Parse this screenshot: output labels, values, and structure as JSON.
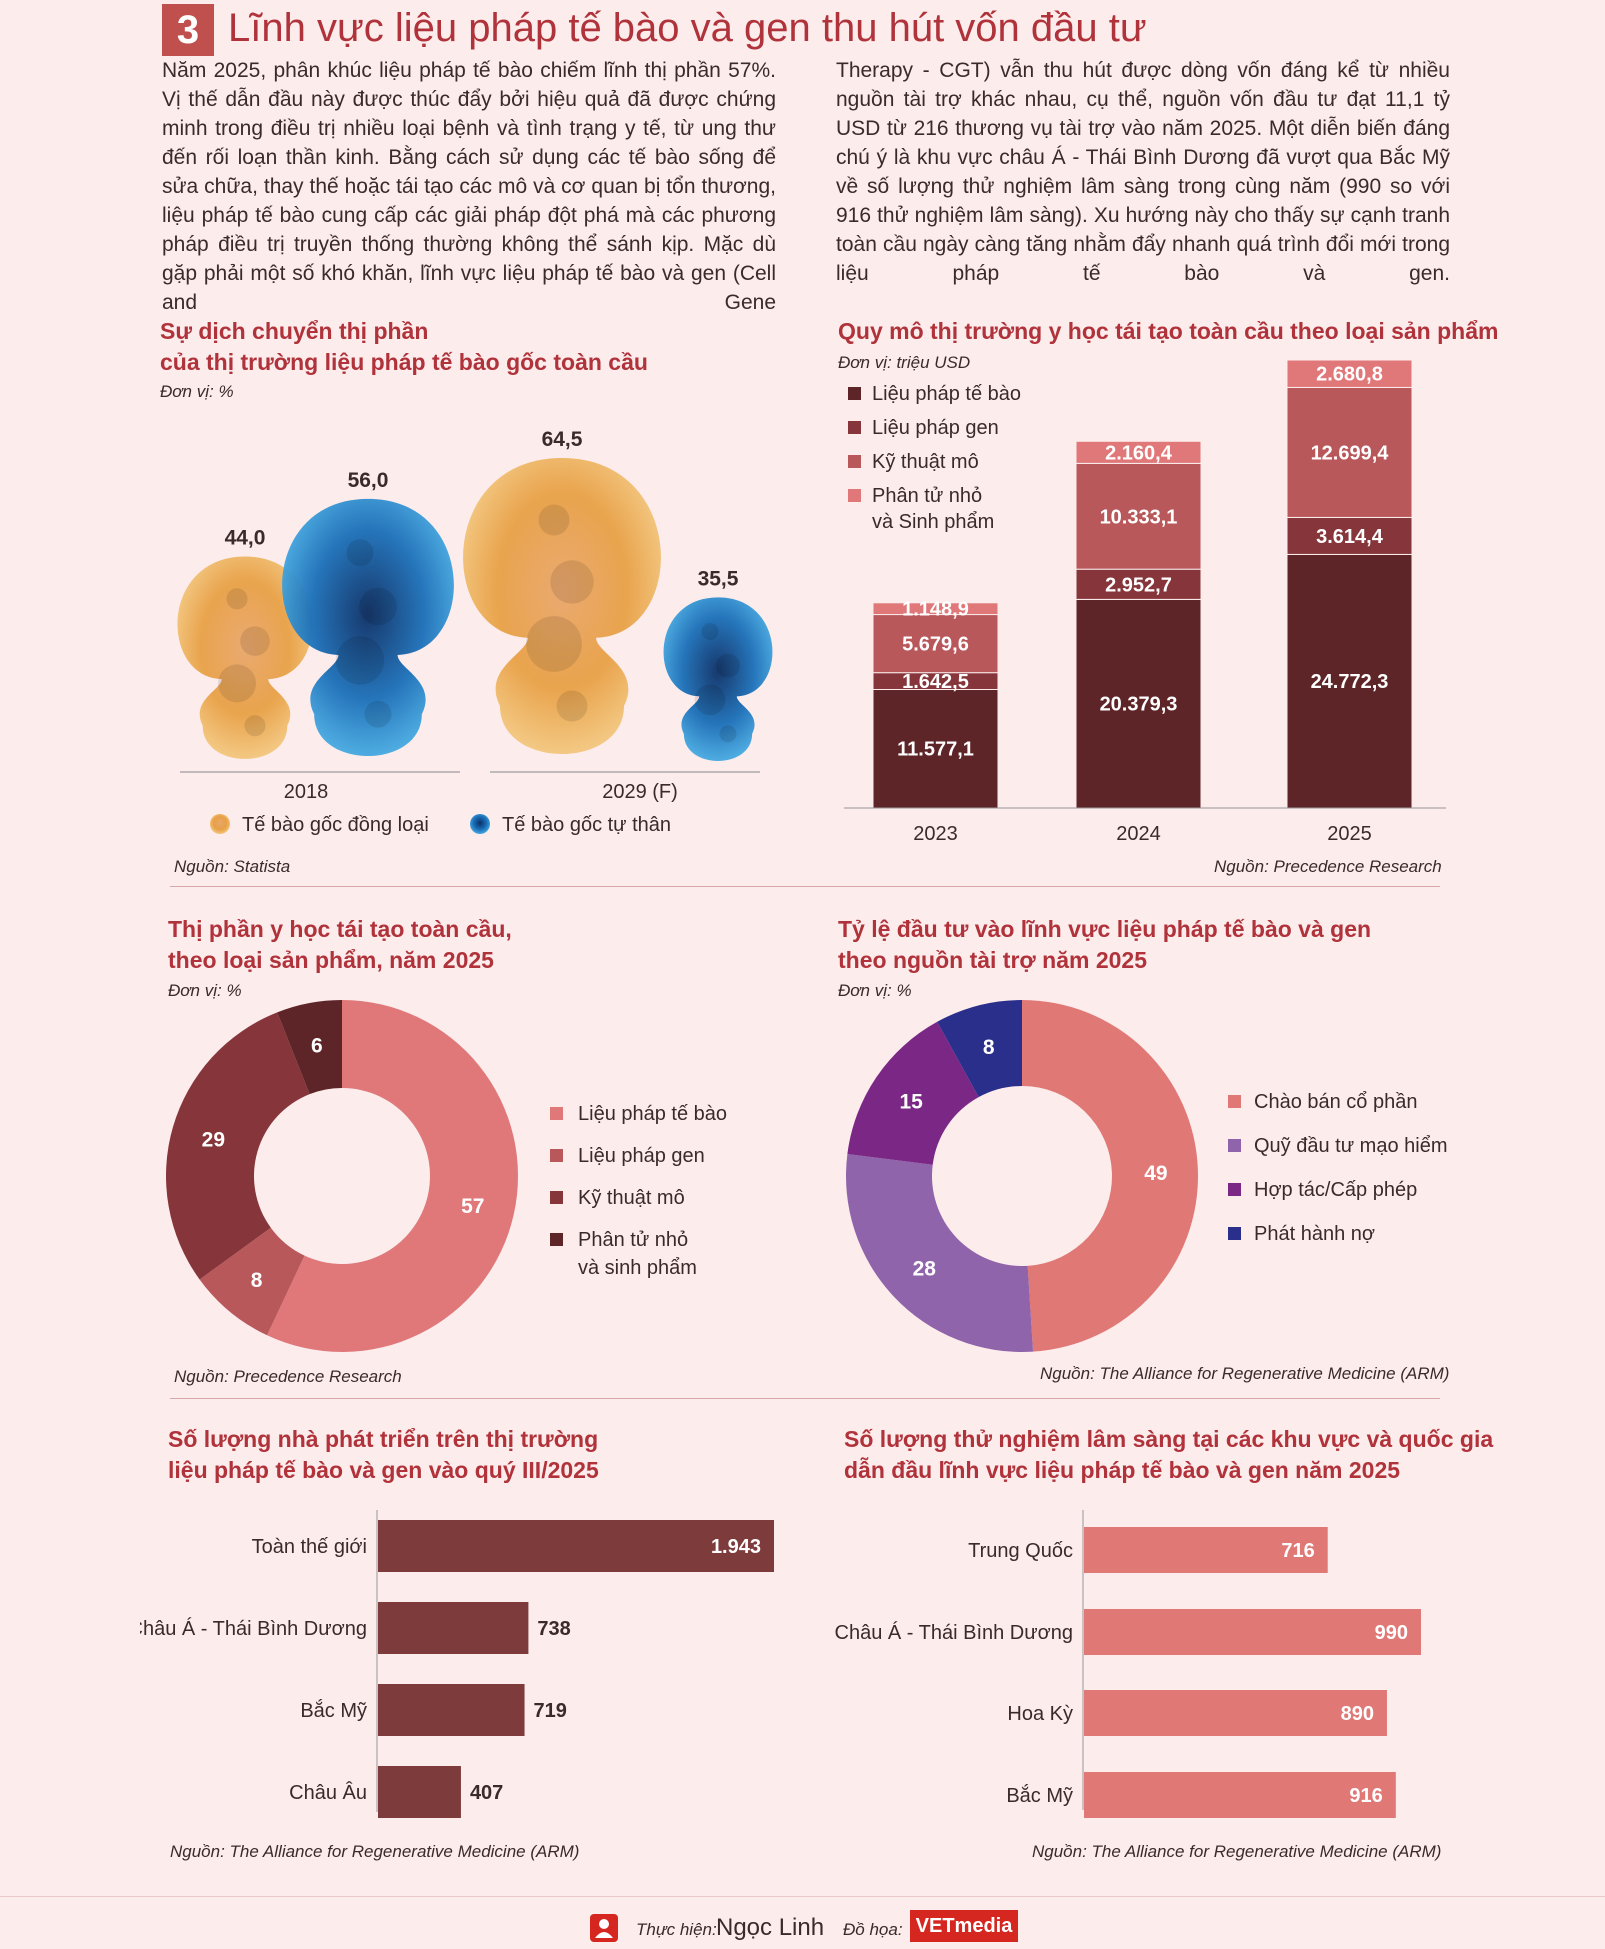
{
  "header": {
    "number": "3",
    "title": "Lĩnh vực  liệu pháp tế bào và gen thu hút vốn đầu tư"
  },
  "intro": {
    "col1": "Năm 2025, phân khúc liệu pháp tế bào chiếm lĩnh thị phần 57%. Vị thế dẫn đầu này được thúc đẩy bởi hiệu quả đã được chứng minh trong điều trị nhiều loại bệnh và tình trạng y tế, từ ung thư đến rối loạn thần kinh. Bằng cách sử dụng các tế bào sống để sửa chữa, thay thế hoặc tái tạo các mô và cơ quan bị tổn thương, liệu pháp tế bào cung cấp các giải pháp đột phá mà các phương pháp điều trị truyền thống thường không thể sánh kịp. Mặc dù gặp phải một số khó khăn, lĩnh vực liệu pháp tế bào và gen (Cell and Gene",
    "col2": "Therapy - CGT) vẫn thu hút được dòng vốn đáng kể từ nhiều nguồn tài trợ khác nhau, cụ thể, nguồn vốn đầu tư đạt 11,1 tỷ USD từ 216 thương vụ tài trợ vào năm 2025. Một diễn biến đáng chú ý là khu vực châu Á - Thái Bình Dương đã vượt qua Bắc Mỹ về số lượng thử nghiệm lâm sàng trong cùng năm (990 so với 916 thử nghiệm lâm sàng). Xu hướng này cho thấy sự cạnh tranh toàn cầu ngày càng tăng nhằm đẩy nhanh quá trình đổi mới trong liệu pháp tế bào và gen."
  },
  "colors": {
    "title": "#b0323a",
    "orange": "#e8a045",
    "blue": "#1a6fb8",
    "dark": "#5e2528",
    "maroon": "#86363a",
    "mid": "#b9585b",
    "light": "#e0787a",
    "salmon": "#e07876",
    "lavender": "#8f64ab",
    "purple": "#7b2785",
    "navy": "#2b2f8c",
    "bar_brown": "#7d3b3c"
  },
  "chart_data": [
    {
      "id": "stemcell",
      "type": "bar",
      "title": "Sự dịch chuyển thị phần\ncủa thị trường liệu pháp tế bào gốc toàn cầu",
      "unit": "Đơn vị: %",
      "categories": [
        "2018",
        "2029 (F)"
      ],
      "series": [
        {
          "name": "Tế bào gốc đồng loại",
          "values": [
            44.0,
            64.5
          ],
          "labels": [
            "44,0",
            "64,5"
          ]
        },
        {
          "name": "Tế bào gốc tự thân",
          "values": [
            56.0,
            35.5
          ],
          "labels": [
            "56,0",
            "35,5"
          ]
        }
      ],
      "source": "Nguồn: Statista"
    },
    {
      "id": "market",
      "type": "bar",
      "stacked": true,
      "title": "Quy mô thị trường y học tái tạo toàn cầu theo loại sản phẩm",
      "unit": "Đơn vị: triệu USD",
      "categories": [
        "2023",
        "2024",
        "2025"
      ],
      "series": [
        {
          "name": "Liệu pháp tế bào",
          "values": [
            11577.1,
            20379.3,
            24772.3
          ],
          "labels": [
            "11.577,1",
            "20.379,3",
            "24.772,3"
          ]
        },
        {
          "name": "Liệu pháp gen",
          "values": [
            1642.5,
            2952.7,
            3614.4
          ],
          "labels": [
            "1.642,5",
            "2.952,7",
            "3.614,4"
          ]
        },
        {
          "name": "Kỹ thuật mô",
          "values": [
            5679.6,
            10333.1,
            12699.4
          ],
          "labels": [
            "5.679,6",
            "10.333,1",
            "12.699,4"
          ]
        },
        {
          "name": "Phân tử nhỏ\nvà Sinh phẩm",
          "values": [
            1148.9,
            2160.4,
            2680.8
          ],
          "labels": [
            "1.148,9",
            "2.160,4",
            "2.680,8"
          ]
        }
      ],
      "source": "Nguồn: Precedence Research"
    },
    {
      "id": "share",
      "type": "pie",
      "donut": true,
      "title": "Thị phần y học tái tạo toàn cầu,\ntheo loại sản phẩm, năm 2025",
      "unit": "Đơn vị: %",
      "slices": [
        {
          "name": "Liệu pháp tế bào",
          "value": 57,
          "label": "57"
        },
        {
          "name": "Liệu pháp gen",
          "value": 8,
          "label": "8"
        },
        {
          "name": "Kỹ thuật mô",
          "value": 29,
          "label": "29"
        },
        {
          "name": "Phân tử nhỏ\nvà sinh phẩm",
          "value": 6,
          "label": "6"
        }
      ],
      "source": "Nguồn: Precedence Research"
    },
    {
      "id": "funding",
      "type": "pie",
      "donut": true,
      "title": "Tỷ lệ đầu tư vào lĩnh vực liệu pháp tế bào và gen\ntheo nguồn tài trợ năm 2025",
      "unit": "Đơn vị: %",
      "slices": [
        {
          "name": "Chào bán cổ phần",
          "value": 49,
          "label": "49"
        },
        {
          "name": "Quỹ đầu tư mạo hiểm",
          "value": 28,
          "label": "28"
        },
        {
          "name": "Hợp tác/Cấp phép",
          "value": 15,
          "label": "15"
        },
        {
          "name": "Phát hành nợ",
          "value": 8,
          "label": "8"
        }
      ],
      "source": "Nguồn: The Alliance for Regenerative Medicine (ARM)"
    },
    {
      "id": "developers",
      "type": "bar",
      "orientation": "horizontal",
      "title": "Số lượng nhà phát triển trên thị trường\nliệu pháp tế bào và gen vào quý III/2025",
      "categories": [
        "Toàn thế giới",
        "Châu Á - Thái Bình Dương",
        "Bắc Mỹ",
        "Châu Âu"
      ],
      "values": [
        1943,
        738,
        719,
        407
      ],
      "labels": [
        "1.943",
        "738",
        "719",
        "407"
      ],
      "source": "Nguồn: The Alliance for Regenerative Medicine (ARM)"
    },
    {
      "id": "trials",
      "type": "bar",
      "orientation": "horizontal",
      "title": "Số lượng thử nghiệm lâm sàng tại các khu vực và quốc gia\ndẫn đầu lĩnh vực liệu pháp tế bào và gen năm 2025",
      "categories": [
        "Trung Quốc",
        "Châu Á - Thái Bình Dương",
        "Hoa Kỳ",
        "Bắc Mỹ"
      ],
      "values": [
        716,
        990,
        890,
        916
      ],
      "labels": [
        "716",
        "990",
        "890",
        "916"
      ],
      "source": "Nguồn: The Alliance for Regenerative Medicine (ARM)"
    }
  ],
  "footer": {
    "author_label": "Thực hiện:",
    "author": "Ngọc Linh",
    "design_label": "Đồ họa:",
    "logo": "VETmedia"
  }
}
